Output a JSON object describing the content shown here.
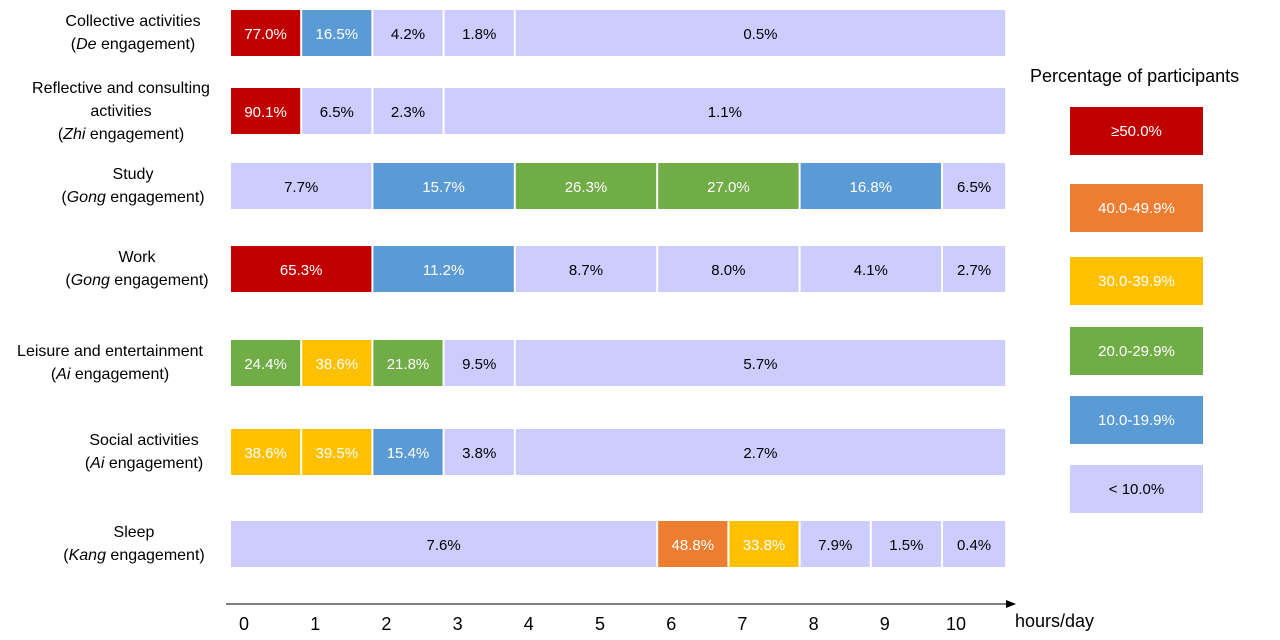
{
  "chart_data": {
    "type": "bar",
    "xlabel": "hours/day",
    "x_ticks": [
      "0",
      "1",
      "2",
      "3",
      "4",
      "5",
      "6",
      "7",
      "8",
      "9",
      "10"
    ],
    "xlim": [
      0,
      10.9
    ],
    "rows": [
      {
        "label_lines": [
          {
            "text": "Collective activities"
          },
          {
            "italic": "De",
            "text": " engagement)",
            "prefix": "("
          }
        ],
        "segments": [
          {
            "start": 0,
            "end": 1,
            "value": "77.0%",
            "band": "≥50.0%"
          },
          {
            "start": 1,
            "end": 2,
            "value": "16.5%",
            "band": "10.0-19.9%"
          },
          {
            "start": 2,
            "end": 3,
            "value": "4.2%",
            "band": "< 10.0%"
          },
          {
            "start": 3,
            "end": 4,
            "value": "1.8%",
            "band": "< 10.0%"
          },
          {
            "start": 4,
            "end": 10.9,
            "value": "0.5%",
            "band": "< 10.0%"
          }
        ]
      },
      {
        "label_lines": [
          {
            "text": "Reflective and consulting"
          },
          {
            "text": "activities"
          },
          {
            "prefix": "(",
            "italic": "Zhi",
            "text": " engagement)"
          }
        ],
        "segments": [
          {
            "start": 0,
            "end": 1,
            "value": "90.1%",
            "band": "≥50.0%"
          },
          {
            "start": 1,
            "end": 2,
            "value": "6.5%",
            "band": "< 10.0%"
          },
          {
            "start": 2,
            "end": 3,
            "value": "2.3%",
            "band": "< 10.0%"
          },
          {
            "start": 3,
            "end": 10.9,
            "value": "1.1%",
            "band": "< 10.0%"
          }
        ]
      },
      {
        "label_lines": [
          {
            "text": "Study"
          },
          {
            "prefix": "(",
            "italic": "Gong",
            "text": " engagement)"
          }
        ],
        "segments": [
          {
            "start": 0,
            "end": 2,
            "value": "7.7%",
            "band": "< 10.0%"
          },
          {
            "start": 2,
            "end": 4,
            "value": "15.7%",
            "band": "10.0-19.9%"
          },
          {
            "start": 4,
            "end": 6,
            "value": "26.3%",
            "band": "20.0-29.9%"
          },
          {
            "start": 6,
            "end": 8,
            "value": "27.0%",
            "band": "20.0-29.9%"
          },
          {
            "start": 8,
            "end": 10,
            "value": "16.8%",
            "band": "10.0-19.9%"
          },
          {
            "start": 10,
            "end": 10.9,
            "value": "6.5%",
            "band": "< 10.0%"
          }
        ]
      },
      {
        "label_lines": [
          {
            "text": "Work"
          },
          {
            "prefix": "(",
            "italic": "Gong",
            "text": " engagement)"
          }
        ],
        "segments": [
          {
            "start": 0,
            "end": 2,
            "value": "65.3%",
            "band": "≥50.0%"
          },
          {
            "start": 2,
            "end": 4,
            "value": "11.2%",
            "band": "10.0-19.9%"
          },
          {
            "start": 4,
            "end": 6,
            "value": "8.7%",
            "band": "< 10.0%"
          },
          {
            "start": 6,
            "end": 8,
            "value": "8.0%",
            "band": "< 10.0%"
          },
          {
            "start": 8,
            "end": 10,
            "value": "4.1%",
            "band": "< 10.0%"
          },
          {
            "start": 10,
            "end": 10.9,
            "value": "2.7%",
            "band": "< 10.0%"
          }
        ]
      },
      {
        "label_lines": [
          {
            "text": "Leisure and entertainment"
          },
          {
            "prefix": "(",
            "italic": "Ai",
            "text": " engagement)"
          }
        ],
        "segments": [
          {
            "start": 0,
            "end": 1,
            "value": "24.4%",
            "band": "20.0-29.9%"
          },
          {
            "start": 1,
            "end": 2,
            "value": "38.6%",
            "band": "30.0-39.9%"
          },
          {
            "start": 2,
            "end": 3,
            "value": "21.8%",
            "band": "20.0-29.9%"
          },
          {
            "start": 3,
            "end": 4,
            "value": "9.5%",
            "band": "< 10.0%"
          },
          {
            "start": 4,
            "end": 10.9,
            "value": "5.7%",
            "band": "< 10.0%"
          }
        ]
      },
      {
        "label_lines": [
          {
            "text": "Social activities"
          },
          {
            "prefix": "(",
            "italic": "Ai",
            "text": " engagement)"
          }
        ],
        "segments": [
          {
            "start": 0,
            "end": 1,
            "value": "38.6%",
            "band": "30.0-39.9%"
          },
          {
            "start": 1,
            "end": 2,
            "value": "39.5%",
            "band": "30.0-39.9%"
          },
          {
            "start": 2,
            "end": 3,
            "value": "15.4%",
            "band": "10.0-19.9%"
          },
          {
            "start": 3,
            "end": 4,
            "value": "3.8%",
            "band": "< 10.0%"
          },
          {
            "start": 4,
            "end": 10.9,
            "value": "2.7%",
            "band": "< 10.0%"
          }
        ]
      },
      {
        "label_lines": [
          {
            "text": "Sleep"
          },
          {
            "prefix": "(",
            "italic": "Kang",
            "text": " engagement)"
          }
        ],
        "segments": [
          {
            "start": 0,
            "end": 6,
            "value": "7.6%",
            "band": "< 10.0%"
          },
          {
            "start": 6,
            "end": 7,
            "value": "48.8%",
            "band": "40.0-49.9%"
          },
          {
            "start": 7,
            "end": 8,
            "value": "33.8%",
            "band": "30.0-39.9%"
          },
          {
            "start": 8,
            "end": 9,
            "value": "7.9%",
            "band": "< 10.0%"
          },
          {
            "start": 9,
            "end": 10,
            "value": "1.5%",
            "band": "< 10.0%"
          },
          {
            "start": 10,
            "end": 10.9,
            "value": "0.4%",
            "band": "< 10.0%"
          }
        ]
      }
    ],
    "legend": {
      "title": "Percentage of participants",
      "placement": "right",
      "items": [
        {
          "label": "≥50.0%",
          "color": "#c00000",
          "text_color": "#ffffff"
        },
        {
          "label": "40.0-49.9%",
          "color": "#ed7d31",
          "text_color": "#ffffff"
        },
        {
          "label": "30.0-39.9%",
          "color": "#ffc000",
          "text_color": "#ffffff"
        },
        {
          "label": "20.0-29.9%",
          "color": "#70ad47",
          "text_color": "#ffffff"
        },
        {
          "label": "10.0-19.9%",
          "color": "#5b9bd5",
          "text_color": "#ffffff"
        },
        {
          "label": "< 10.0%",
          "color": "#ccccff",
          "text_color": "#000000"
        }
      ]
    }
  }
}
